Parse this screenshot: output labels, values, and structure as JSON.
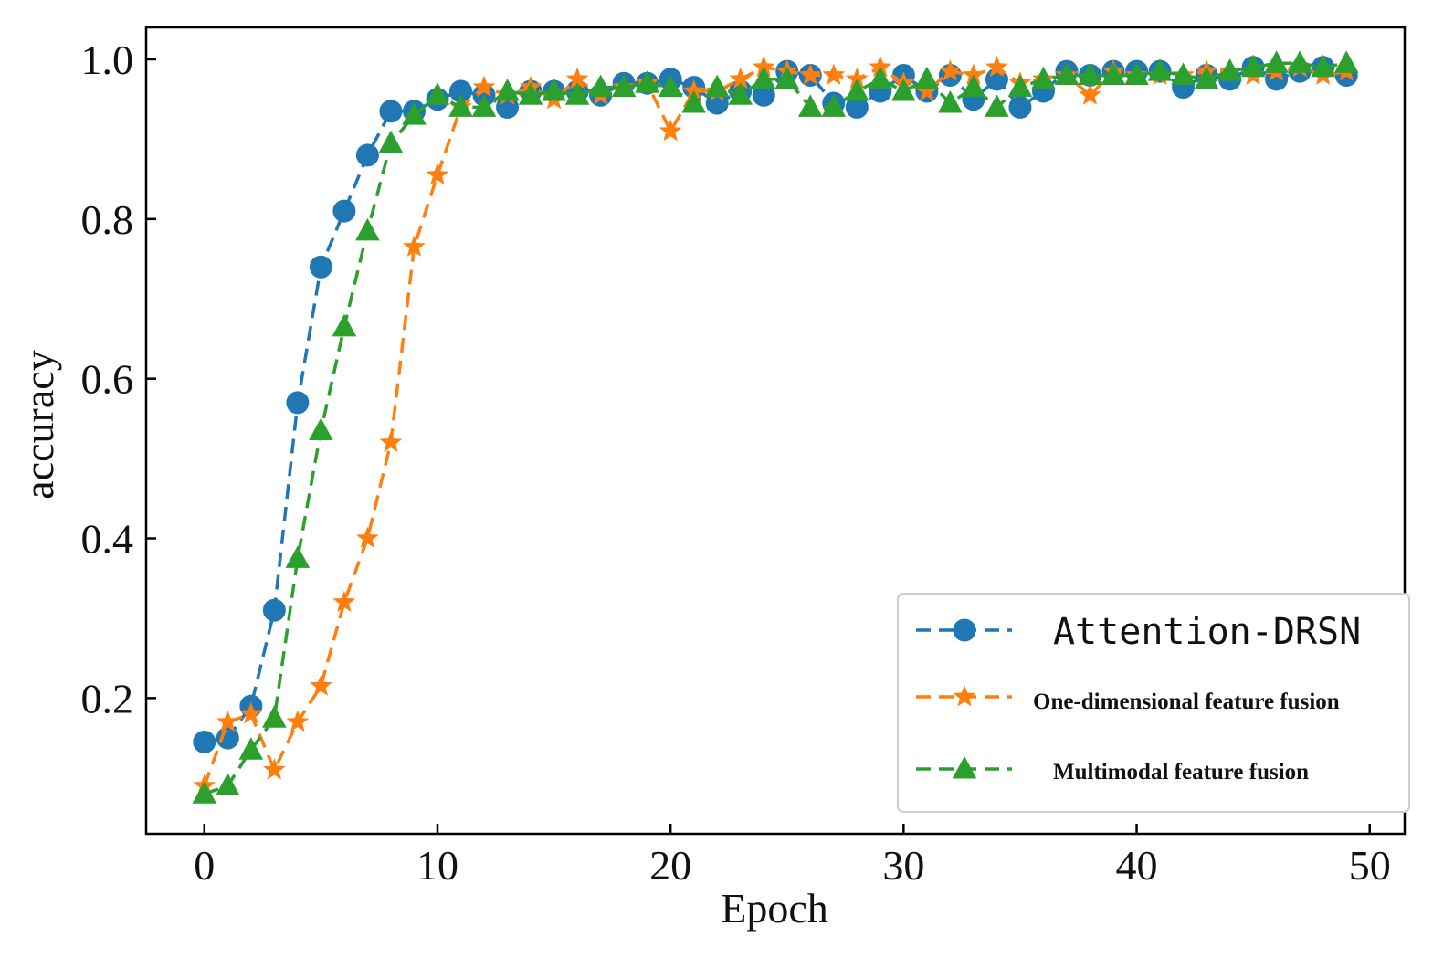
{
  "chart_data": {
    "type": "line",
    "title": "",
    "xlabel": "Epoch",
    "ylabel": "accuracy",
    "xlim": [
      -2.5,
      51.5
    ],
    "ylim": [
      0.03,
      1.04
    ],
    "xticks": [
      0,
      10,
      20,
      30,
      40,
      50
    ],
    "xtick_labels": [
      "0",
      "10",
      "20",
      "30",
      "40",
      "50"
    ],
    "yticks": [
      0.2,
      0.4,
      0.6,
      0.8,
      1.0
    ],
    "ytick_labels": [
      "0.2",
      "0.4",
      "0.6",
      "0.8",
      "1.0"
    ],
    "grid": false,
    "legend_position": "lower-right",
    "x": [
      0,
      1,
      2,
      3,
      4,
      5,
      6,
      7,
      8,
      9,
      10,
      11,
      12,
      13,
      14,
      15,
      16,
      17,
      18,
      19,
      20,
      21,
      22,
      23,
      24,
      25,
      26,
      27,
      28,
      29,
      30,
      31,
      32,
      33,
      34,
      35,
      36,
      37,
      38,
      39,
      40,
      41,
      42,
      43,
      44,
      45,
      46,
      47,
      48,
      49
    ],
    "series": [
      {
        "name": "Attention-DRSN",
        "color": "#1f77b4",
        "marker": "circle",
        "values": [
          0.145,
          0.15,
          0.19,
          0.31,
          0.57,
          0.74,
          0.81,
          0.88,
          0.935,
          0.935,
          0.95,
          0.96,
          0.955,
          0.94,
          0.96,
          0.96,
          0.96,
          0.955,
          0.97,
          0.97,
          0.975,
          0.965,
          0.945,
          0.96,
          0.955,
          0.985,
          0.98,
          0.945,
          0.94,
          0.96,
          0.98,
          0.96,
          0.98,
          0.95,
          0.975,
          0.94,
          0.96,
          0.985,
          0.98,
          0.985,
          0.985,
          0.985,
          0.965,
          0.98,
          0.975,
          0.99,
          0.975,
          0.985,
          0.99,
          0.98
        ]
      },
      {
        "name": "One-dimensional feature fusion",
        "color": "#ff7f0e",
        "marker": "star",
        "values": [
          0.09,
          0.17,
          0.18,
          0.11,
          0.17,
          0.215,
          0.32,
          0.4,
          0.52,
          0.765,
          0.855,
          0.94,
          0.965,
          0.955,
          0.965,
          0.95,
          0.975,
          0.955,
          0.965,
          0.97,
          0.91,
          0.96,
          0.96,
          0.975,
          0.99,
          0.985,
          0.98,
          0.98,
          0.975,
          0.99,
          0.97,
          0.96,
          0.985,
          0.98,
          0.99,
          0.97,
          0.975,
          0.98,
          0.955,
          0.985,
          0.98,
          0.98,
          0.98,
          0.985,
          0.985,
          0.98,
          0.985,
          0.99,
          0.98,
          0.985
        ]
      },
      {
        "name": "Multimodal feature fusion",
        "color": "#2ca02c",
        "marker": "triangle",
        "values": [
          0.08,
          0.09,
          0.135,
          0.175,
          0.375,
          0.535,
          0.665,
          0.785,
          0.895,
          0.93,
          0.955,
          0.94,
          0.94,
          0.96,
          0.955,
          0.96,
          0.955,
          0.965,
          0.965,
          0.97,
          0.965,
          0.945,
          0.965,
          0.955,
          0.975,
          0.975,
          0.94,
          0.94,
          0.96,
          0.975,
          0.96,
          0.975,
          0.945,
          0.965,
          0.94,
          0.965,
          0.975,
          0.98,
          0.98,
          0.98,
          0.98,
          0.985,
          0.98,
          0.975,
          0.985,
          0.99,
          0.995,
          0.995,
          0.99,
          0.995
        ]
      }
    ]
  }
}
